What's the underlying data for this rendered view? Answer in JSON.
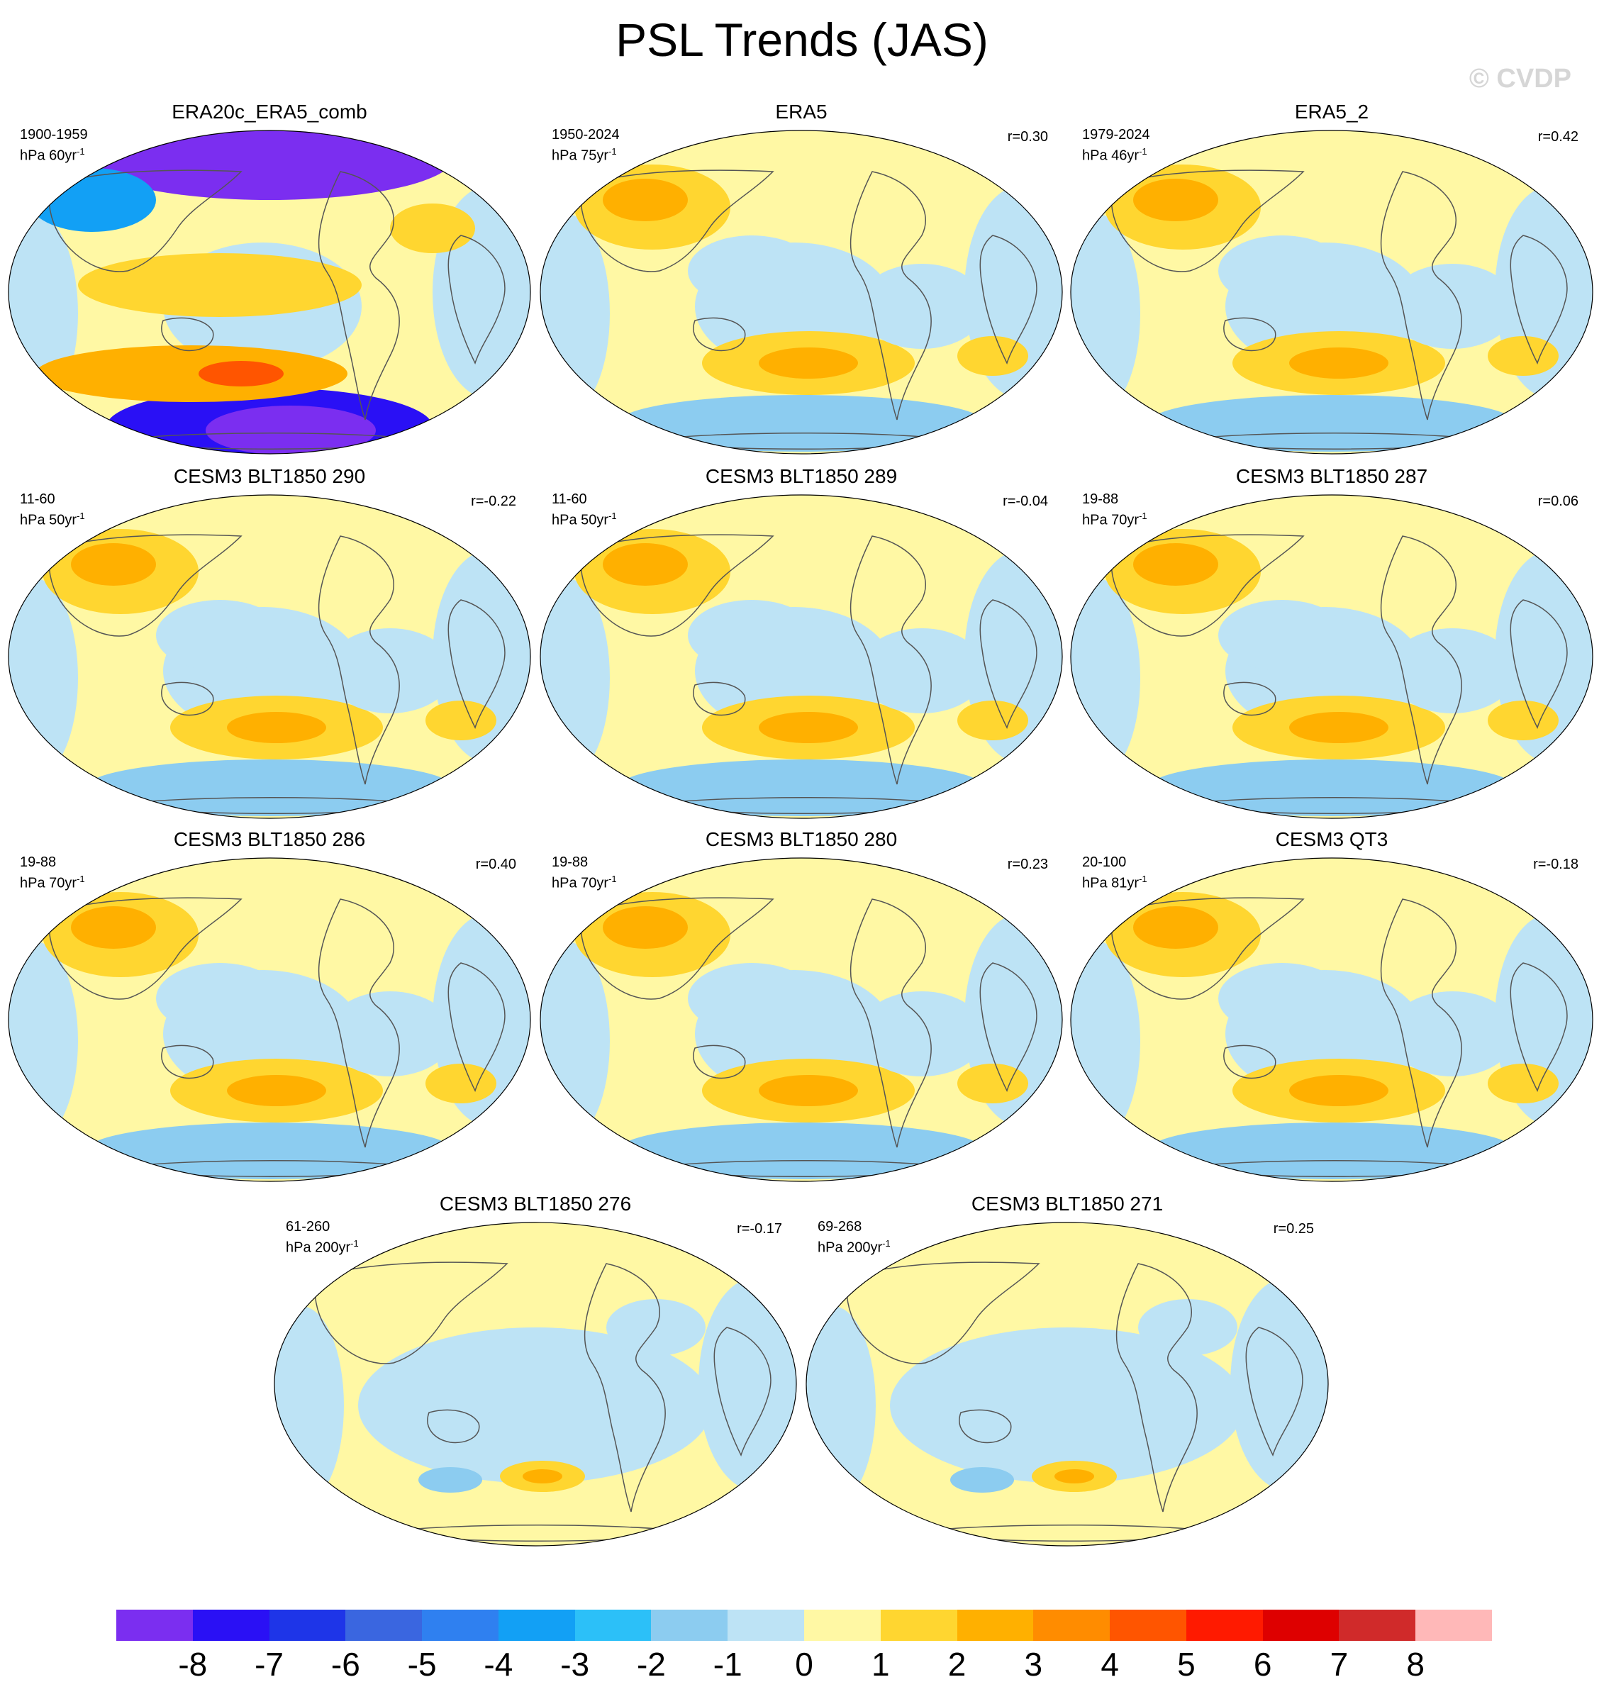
{
  "title": "PSL Trends (JAS)",
  "copyright": "© CVDP",
  "colorbar": {
    "colors": [
      "#7b2ef0",
      "#2a10f5",
      "#1e35e8",
      "#3a66e0",
      "#2f80f0",
      "#12a0f5",
      "#2cc0f8",
      "#8cccf0",
      "#bde3f5",
      "#fff8a4",
      "#ffd630",
      "#ffb000",
      "#ff8c00",
      "#ff5500",
      "#ff1a00",
      "#de0000",
      "#d02a2a",
      "#ffb8b8"
    ],
    "labels": [
      "-8",
      "-7",
      "-6",
      "-5",
      "-4",
      "-3",
      "-2",
      "-1",
      "0",
      "1",
      "2",
      "3",
      "4",
      "5",
      "6",
      "7",
      "8"
    ]
  },
  "panels": [
    {
      "name": "ERA20c_ERA5_comb",
      "period": "1900-1959",
      "units": "hPa 60yr",
      "unitsExp": "-1",
      "r": "",
      "style": "strong"
    },
    {
      "name": "ERA5",
      "period": "1950-2024",
      "units": "hPa 75yr",
      "unitsExp": "-1",
      "r": "r=0.30",
      "style": "mid"
    },
    {
      "name": "ERA5_2",
      "period": "1979-2024",
      "units": "hPa 46yr",
      "unitsExp": "-1",
      "r": "r=0.42",
      "style": "mid"
    },
    {
      "name": "CESM3 BLT1850 290",
      "period": "11-60",
      "units": "hPa 50yr",
      "unitsExp": "-1",
      "r": "r=-0.22",
      "style": "mid"
    },
    {
      "name": "CESM3 BLT1850 289",
      "period": "11-60",
      "units": "hPa 50yr",
      "unitsExp": "-1",
      "r": "r=-0.04",
      "style": "mid"
    },
    {
      "name": "CESM3 BLT1850 287",
      "period": "19-88",
      "units": "hPa 70yr",
      "unitsExp": "-1",
      "r": "r=0.06",
      "style": "mid"
    },
    {
      "name": "CESM3 BLT1850 286",
      "period": "19-88",
      "units": "hPa 70yr",
      "unitsExp": "-1",
      "r": "r=0.40",
      "style": "mid"
    },
    {
      "name": "CESM3 BLT1850 280",
      "period": "19-88",
      "units": "hPa 70yr",
      "unitsExp": "-1",
      "r": "r=0.23",
      "style": "mid"
    },
    {
      "name": "CESM3 QT3",
      "period": "20-100",
      "units": "hPa 81yr",
      "unitsExp": "-1",
      "r": "r=-0.18",
      "style": "mid"
    },
    {
      "name": "CESM3 BLT1850 276",
      "period": "61-260",
      "units": "hPa 200yr",
      "unitsExp": "-1",
      "r": "r=-0.17",
      "style": "weak"
    },
    {
      "name": "CESM3 BLT1850 271",
      "period": "69-268",
      "units": "hPa 200yr",
      "unitsExp": "-1",
      "r": "r=0.25",
      "style": "weak"
    }
  ]
}
